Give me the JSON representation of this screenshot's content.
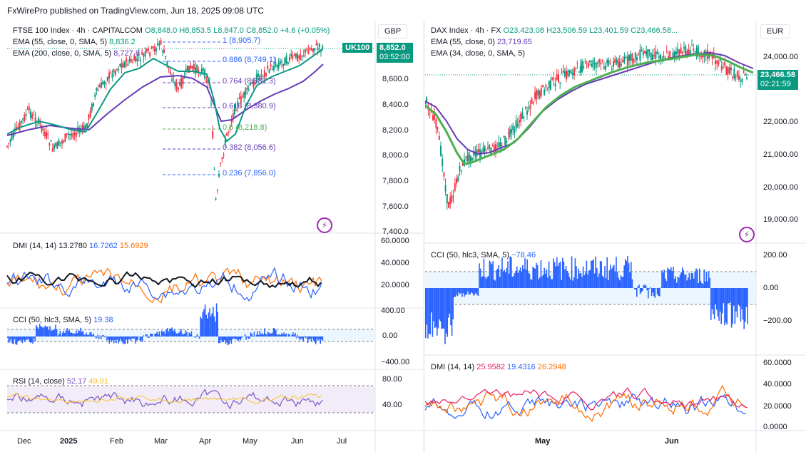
{
  "header": {
    "publisher": "FxWirePro published on TradingView.com, Jun 18, 2025 09:08 UTC"
  },
  "left": {
    "symbol": {
      "name": "FTSE 100 Index · 4h · CAPITALCOM",
      "o": "O8,848.0",
      "h": "H8,853.5",
      "l": "L8,847.0",
      "c": "C8,852.0",
      "chg": "+4.6 (+0.05%)"
    },
    "ema55": {
      "label": "EMA (55, close, 0, SMA, 5)",
      "value": "8,836.2"
    },
    "ema200": {
      "label": "EMA (200, close, 0, SMA, 5)",
      "value": "8,727.8"
    },
    "currency": "GBP",
    "tag": "UK100",
    "current": {
      "price": "8,852.0",
      "time": "03:52:00"
    },
    "price_axis": [
      "8,600.0",
      "8,400.0",
      "8,200.0",
      "8,000.0",
      "7,800.0",
      "7,600.0",
      "7,400.0"
    ],
    "fib": [
      {
        "level": "1 (8,905.7)"
      },
      {
        "level": "0.886 (8,749.1)"
      },
      {
        "level": "0.764 (8,581.3)"
      },
      {
        "level": "0.618 (8,380.9)"
      },
      {
        "level": "0.5 (8,218.8)"
      },
      {
        "level": "0.382 (8,056.6)"
      },
      {
        "level": "0.236 (7,856.0)"
      }
    ],
    "dmi": {
      "label": "DMI (14, 14)",
      "adx": "13.2780",
      "plus": "16.7262",
      "minus": "15.6929",
      "axis": [
        "60.0000",
        "40.0000",
        "20.0000"
      ]
    },
    "cci": {
      "label": "CCI (50, hlc3, SMA, 5)",
      "value": "19.38",
      "axis": [
        "400.00",
        "0.00",
        "−400.00"
      ]
    },
    "rsi": {
      "label": "RSI (14, close)",
      "value": "52.17",
      "ma": "49.91",
      "axis": [
        "80.00",
        "40.00"
      ]
    },
    "time_axis": [
      "Dec",
      "2025",
      "Feb",
      "Mar",
      "Apr",
      "May",
      "Jun",
      "Jul"
    ]
  },
  "right": {
    "symbol": {
      "name": "DAX Index · 4h · FX",
      "o": "O23,423.08",
      "h": "H23,506.59",
      "l": "L23,401.59",
      "c": "C23,466.58..."
    },
    "ema55": {
      "label": "EMA (55, close, 0)",
      "value": "23,719.65"
    },
    "ema34": {
      "label": "EMA (34, close, 0, SMA, 5)"
    },
    "currency": "EUR",
    "current": {
      "price": "23,466.58",
      "time": "02:21:59"
    },
    "price_axis": [
      "24,000.00",
      "22,000.00",
      "21,000.00",
      "20,000.00",
      "19,000.00"
    ],
    "cci": {
      "label": "CCI (50, hlc3, SMA, 5)",
      "value": "−78.46",
      "axis": [
        "200.00",
        "0.00",
        "−200.00"
      ]
    },
    "dmi": {
      "label": "DMI (14, 14)",
      "adx": "25.9582",
      "plus": "19.4316",
      "minus": "26.2948",
      "axis": [
        "60.0000",
        "40.0000",
        "20.0000",
        "0.0000"
      ]
    },
    "time_axis": [
      "May",
      "Jun"
    ]
  },
  "colors": {
    "up": "#089981",
    "down": "#f23645",
    "ema55": "#089981",
    "ema200": "#673ab7",
    "fib_blue": "#2962ff",
    "fib_purple": "#673ab7",
    "fib_green": "#4caf50",
    "dax_ema55": "#4caf50",
    "dax_ema34": "#673ab7",
    "cci": "#2962ff",
    "rsi": "#7e57c2",
    "rsi_ma": "#fbc02d",
    "adx": "#131722",
    "plus": "#2962ff",
    "minus": "#ff6d00",
    "dax_adx": "#e91e63"
  }
}
